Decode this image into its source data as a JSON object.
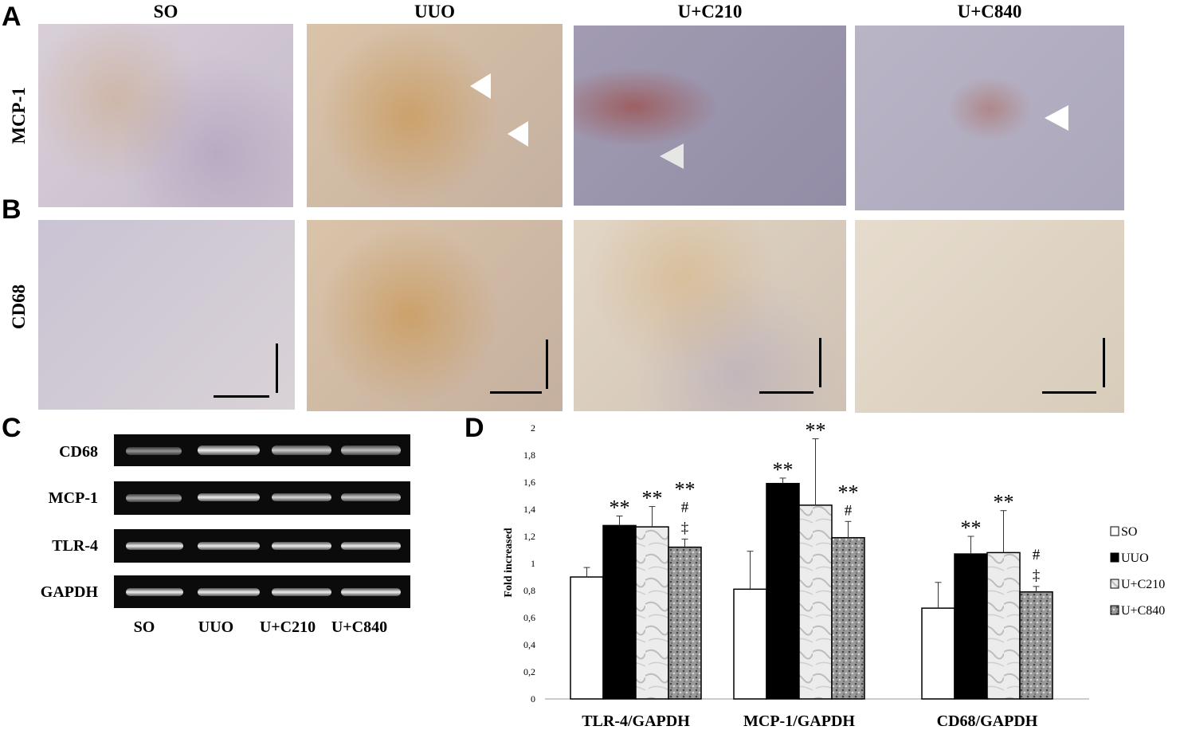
{
  "panels": {
    "A": "A",
    "B": "B",
    "C": "C",
    "D": "D"
  },
  "columns": [
    "SO",
    "UUO",
    "U+C210",
    "U+C840"
  ],
  "rows": [
    "MCP-1",
    "CD68"
  ],
  "gel": {
    "markers": [
      "CD68",
      "MCP-1",
      "TLR-4",
      "GAPDH"
    ],
    "lanes": [
      "SO",
      "UUO",
      "U+C210",
      "U+C840"
    ]
  },
  "chart_data": {
    "type": "bar",
    "title": "",
    "xlabel": "",
    "ylabel": "Fold increased",
    "ylim": [
      0,
      2
    ],
    "yticks": [
      "0",
      "0,2",
      "0,4",
      "0,6",
      "0,8",
      "1",
      "1,2",
      "1,4",
      "1,6",
      "1,8",
      "2"
    ],
    "categories": [
      "TLR-4/GAPDH",
      "MCP-1/GAPDH",
      "CD68/GAPDH"
    ],
    "legend_position": "right",
    "series": [
      {
        "name": "SO",
        "values": [
          0.9,
          0.81,
          0.67
        ],
        "errors": [
          0.07,
          0.28,
          0.19
        ],
        "fill": "white",
        "annotations": [
          "",
          "",
          ""
        ]
      },
      {
        "name": "UUO",
        "values": [
          1.28,
          1.59,
          1.07
        ],
        "errors": [
          0.07,
          0.04,
          0.13
        ],
        "fill": "black",
        "annotations": [
          "**",
          "**",
          "**"
        ]
      },
      {
        "name": "U+C210",
        "values": [
          1.27,
          1.43,
          1.08
        ],
        "errors": [
          0.15,
          0.49,
          0.31
        ],
        "fill": "light-marble",
        "annotations": [
          "**",
          "**",
          "**"
        ]
      },
      {
        "name": "U+C840",
        "values": [
          1.12,
          1.19,
          0.79
        ],
        "errors": [
          0.06,
          0.12,
          0.04
        ],
        "fill": "dark-speckle",
        "annotations": [
          "** # ‡",
          "** #",
          "# ‡"
        ]
      }
    ]
  }
}
